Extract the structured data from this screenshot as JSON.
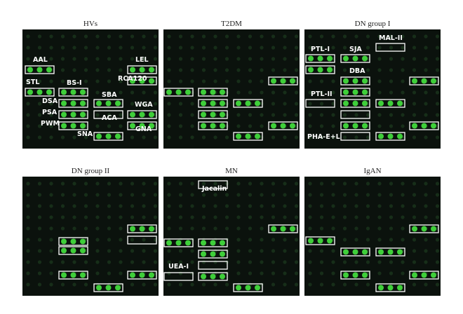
{
  "panels": [
    {
      "title": "HVs",
      "labels": [
        "AAL",
        "STL",
        "BS-I",
        "DSA",
        "PSA",
        "PWM",
        "SBA",
        "ACA",
        "SNA",
        "LEL",
        "RCA120",
        "WGA",
        "GNA"
      ]
    },
    {
      "title": "T2DM",
      "labels": []
    },
    {
      "title": "DN group I",
      "labels": [
        "PTL-I",
        "SJA",
        "MAL-II",
        "DBA",
        "PTL-II",
        "PHA-E+L"
      ]
    },
    {
      "title": "DN group II",
      "labels": []
    },
    {
      "title": "MN",
      "labels": [
        "Jacalin",
        "UEA-I"
      ]
    },
    {
      "title": "IgAN",
      "labels": []
    }
  ]
}
